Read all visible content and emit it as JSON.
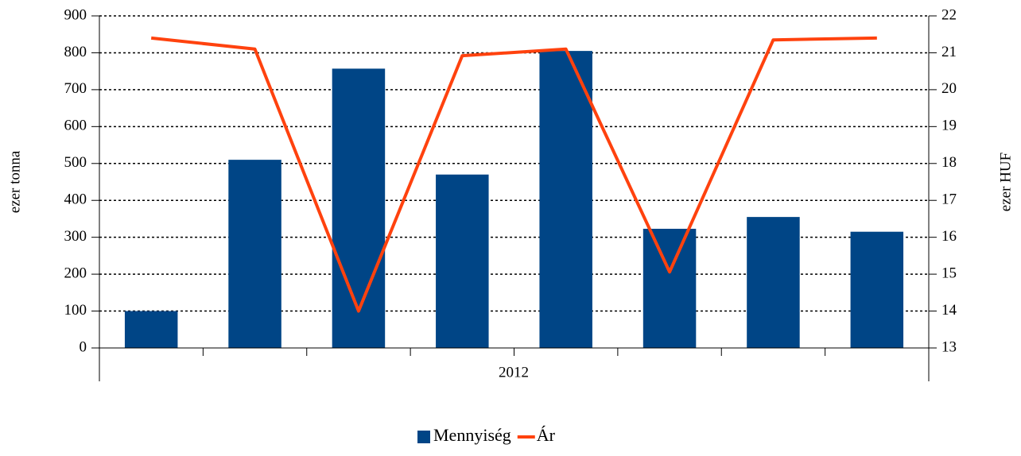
{
  "chart_data": {
    "type": "bar",
    "categories": [
      null,
      null,
      null,
      null,
      null,
      null,
      null,
      null
    ],
    "x_group_label": "2012",
    "ylabel": "ezer tonna",
    "y2label": "ezer HUF",
    "series": [
      {
        "name": "Mennyiség",
        "type": "bar",
        "color": "#004586",
        "values": [
          100,
          510,
          757,
          470,
          805,
          323,
          355,
          315
        ]
      },
      {
        "name": "Ár",
        "type": "line",
        "axis": "y2",
        "color": "#ff420e",
        "values": [
          21.4,
          21.1,
          14.0,
          20.92,
          21.1,
          15.06,
          21.35,
          21.4
        ]
      }
    ],
    "ylim": [
      0,
      900
    ],
    "yticks": [
      0,
      100,
      200,
      300,
      400,
      500,
      600,
      700,
      800,
      900
    ],
    "y2lim": [
      13,
      22
    ],
    "y2ticks": [
      13,
      14,
      15,
      16,
      17,
      18,
      19,
      20,
      21,
      22
    ],
    "grid": true,
    "legend": "bottom"
  }
}
